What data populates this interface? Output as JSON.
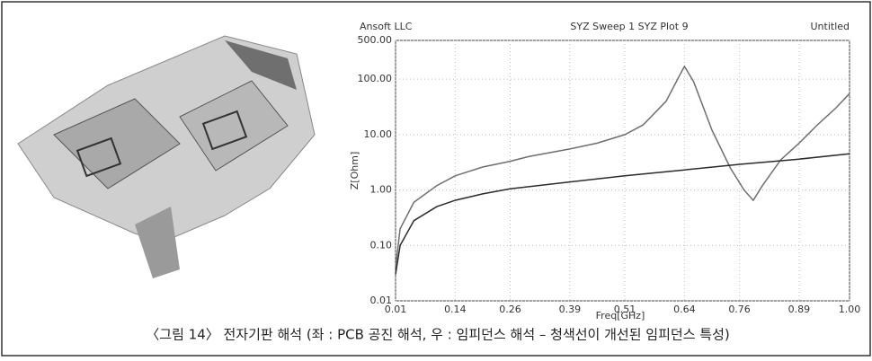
{
  "caption": "〈그림 14〉 전자기판 해석 (좌 : PCB 공진 해석, 우 : 임피던스 해석 – 청색선이 개선된 임피던스 특성)",
  "chart_data": {
    "type": "line",
    "header_left": "Ansoft LLC",
    "title": "SYZ Sweep 1 SYZ Plot 9",
    "header_right": "Untitled",
    "x_label": "Freq[GHz]",
    "y_label": "Z[Ohm]",
    "log_y": true,
    "grid": true,
    "xlim": [
      0.01,
      1.0
    ],
    "ylim": [
      0.01,
      500
    ],
    "xticks": [
      0.01,
      0.14,
      0.26,
      0.39,
      0.51,
      0.64,
      0.76,
      0.89,
      {
        "value": 1.0,
        "label": "1.00"
      }
    ],
    "yticks": [
      0.01,
      {
        "value": 0.1,
        "label": "0.10"
      },
      {
        "value": 1,
        "label": "1.00"
      },
      {
        "value": 10,
        "label": "10.00"
      },
      {
        "value": 100,
        "label": "100.00"
      },
      {
        "value": 500,
        "label": "500.00"
      }
    ],
    "series": [
      {
        "color": "#6e6e6e",
        "x": [
          0.01,
          0.02,
          0.05,
          0.1,
          0.14,
          0.2,
          0.26,
          0.3,
          0.39,
          0.45,
          0.51,
          0.55,
          0.6,
          0.63,
          0.64,
          0.66,
          0.7,
          0.74,
          0.77,
          0.79,
          0.81,
          0.85,
          0.89,
          0.93,
          0.97,
          1.0
        ],
        "values": [
          0.04,
          0.2,
          0.6,
          1.2,
          1.8,
          2.6,
          3.3,
          4,
          5.5,
          7,
          10,
          15,
          40,
          120,
          170,
          90,
          12,
          2.5,
          1,
          0.65,
          1.2,
          3.5,
          7,
          15,
          30,
          55
        ]
      },
      {
        "color": "#2b2b2b",
        "x": [
          0.01,
          0.02,
          0.05,
          0.1,
          0.14,
          0.2,
          0.26,
          0.39,
          0.51,
          0.64,
          0.76,
          0.89,
          1.0
        ],
        "values": [
          0.03,
          0.1,
          0.28,
          0.5,
          0.65,
          0.85,
          1.05,
          1.4,
          1.8,
          2.3,
          2.9,
          3.6,
          4.5
        ]
      }
    ]
  }
}
